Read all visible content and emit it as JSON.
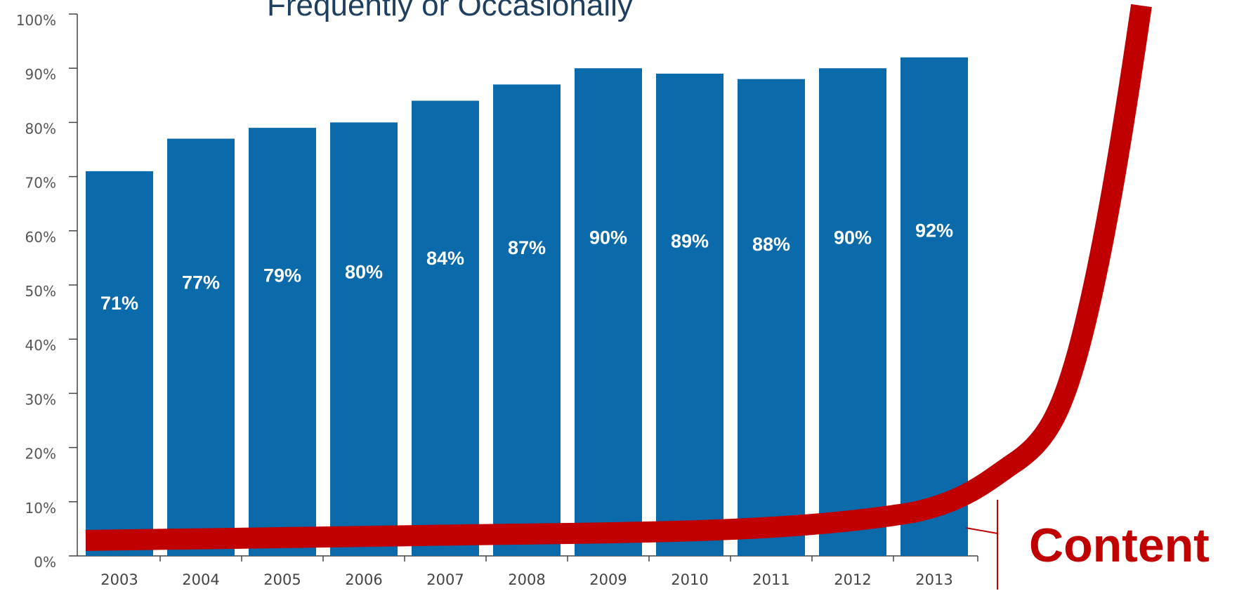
{
  "colors": {
    "bar": "#0a6aaa",
    "curve": "#c00000",
    "axis": "#444444",
    "title": "#1f3f5f",
    "label": "#ffffff"
  },
  "chart_data": {
    "type": "bar",
    "title": "Frequently or Occasionally",
    "categories": [
      "2003",
      "2004",
      "2005",
      "2006",
      "2007",
      "2008",
      "2009",
      "2010",
      "2011",
      "2012",
      "2013"
    ],
    "values": [
      71,
      77,
      79,
      80,
      84,
      87,
      90,
      89,
      88,
      90,
      92
    ],
    "data_labels": [
      "71%",
      "77%",
      "79%",
      "80%",
      "84%",
      "87%",
      "90%",
      "89%",
      "88%",
      "90%",
      "92%"
    ],
    "y_ticks": [
      "0%",
      "10%",
      "20%",
      "30%",
      "40%",
      "50%",
      "60%",
      "70%",
      "80%",
      "90%",
      "100%"
    ],
    "ylim": [
      0,
      100
    ],
    "grid": false,
    "legend": false,
    "annotation": {
      "text": "Content",
      "shape": "exponential red curve"
    }
  }
}
